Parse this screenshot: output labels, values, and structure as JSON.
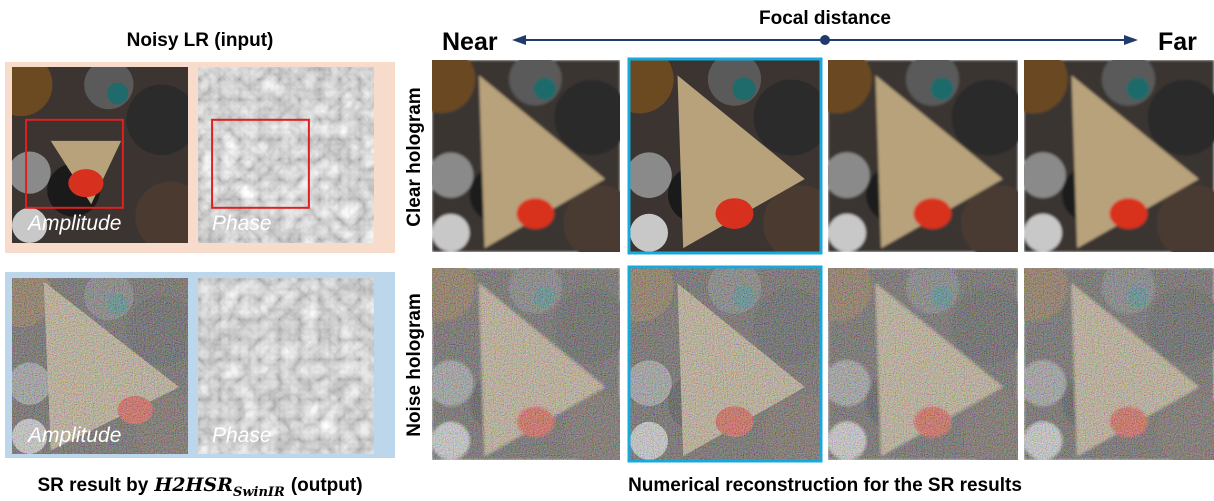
{
  "left": {
    "title": "Noisy LR (input)",
    "input_labels": [
      "Amplitude",
      "Phase"
    ],
    "output_labels": [
      "Amplitude",
      "Phase"
    ],
    "caption": {
      "prefix": "SR result by",
      "method": "H2HSR",
      "subscript": "SwinIR",
      "suffix": "(output)"
    }
  },
  "right": {
    "axis": {
      "title": "Focal distance",
      "start": "Near",
      "end": "Far"
    },
    "rows": [
      "Clear hologram",
      "Noise hologram"
    ],
    "caption": "Numerical reconstruction for the SR results"
  }
}
